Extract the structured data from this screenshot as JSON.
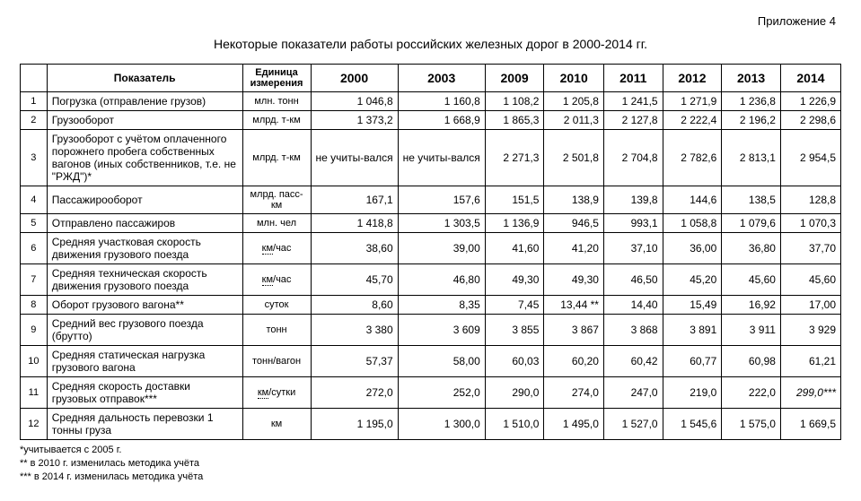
{
  "appendix": "Приложение 4",
  "title": "Некоторые показатели работы российских железных дорог в 2000-2014 гг.",
  "headers": {
    "indicator": "Показатель",
    "unit": "Единица измерения",
    "years": [
      "2000",
      "2003",
      "2009",
      "2010",
      "2011",
      "2012",
      "2013",
      "2014"
    ]
  },
  "rows": [
    {
      "n": "1",
      "indicator": "Погрузка (отправление грузов)",
      "unit": "млн. тонн",
      "vals": [
        "1 046,8",
        "1 160,8",
        "1 108,2",
        "1 205,8",
        "1 241,5",
        "1 271,9",
        "1 236,8",
        "1 226,9"
      ]
    },
    {
      "n": "2",
      "indicator": "Грузооборот",
      "unit": "млрд. т-км",
      "vals": [
        "1 373,2",
        "1 668,9",
        "1 865,3",
        "2 011,3",
        "2 127,8",
        "2 222,4",
        "2 196,2",
        "2 298,6"
      ]
    },
    {
      "n": "3",
      "indicator": "Грузооборот с учётом оплаченного порожнего пробега собственных вагонов (иных собственников, т.е. не \"РЖД\")*",
      "unit": "млрд. т-км",
      "vals": [
        "не учиты-вался",
        "не учиты-вался",
        "2 271,3",
        "2 501,8",
        "2 704,8",
        "2 782,6",
        "2 813,1",
        "2 954,5"
      ],
      "center": [
        0,
        1
      ]
    },
    {
      "n": "4",
      "indicator": "Пассажирооборот",
      "unit": "млрд. пасс-км",
      "vals": [
        "167,1",
        "157,6",
        "151,5",
        "138,9",
        "139,8",
        "144,6",
        "138,5",
        "128,8"
      ]
    },
    {
      "n": "5",
      "indicator": "Отправлено пассажиров",
      "unit": "млн. чел",
      "vals": [
        "1 418,8",
        "1 303,5",
        "1 136,9",
        "946,5",
        "993,1",
        "1 058,8",
        "1 079,6",
        "1 070,3"
      ]
    },
    {
      "n": "6",
      "indicator": "Средняя участковая скорость движения грузового поезда",
      "unit_html": "<span class=\"dotted\">км</span>/час",
      "vals": [
        "38,60",
        "39,00",
        "41,60",
        "41,20",
        "37,10",
        "36,00",
        "36,80",
        "37,70"
      ]
    },
    {
      "n": "7",
      "indicator": "Средняя техническая скорость движения грузового поезда",
      "unit_html": "<span class=\"dotted\">км</span>/час",
      "vals": [
        "45,70",
        "46,80",
        "49,30",
        "49,30",
        "46,50",
        "45,20",
        "45,60",
        "45,60"
      ]
    },
    {
      "n": "8",
      "indicator": "Оборот грузового вагона**",
      "unit": "суток",
      "vals": [
        "8,60",
        "8,35",
        "7,45",
        "13,44 **",
        "14,40",
        "15,49",
        "16,92",
        "17,00"
      ]
    },
    {
      "n": "9",
      "indicator": "Средний вес грузового поезда (брутто)",
      "unit": "тонн",
      "vals": [
        "3 380",
        "3 609",
        "3 855",
        "3 867",
        "3 868",
        "3 891",
        "3 911",
        "3 929"
      ]
    },
    {
      "n": "10",
      "indicator": "Средняя статическая нагрузка грузового вагона",
      "unit": "тонн/вагон",
      "vals": [
        "57,37",
        "58,00",
        "60,03",
        "60,20",
        "60,42",
        "60,77",
        "60,98",
        "61,21"
      ]
    },
    {
      "n": "11",
      "indicator": "Средняя скорость доставки грузовых отправок***",
      "unit_html": "<span class=\"dotted\">км</span>/сутки",
      "vals": [
        "272,0",
        "252,0",
        "290,0",
        "274,0",
        "247,0",
        "219,0",
        "222,0",
        "299,0***"
      ],
      "italic": [
        7
      ]
    },
    {
      "n": "12",
      "indicator": "Средняя дальность перевозки 1 тонны груза",
      "unit": "км",
      "vals": [
        "1 195,0",
        "1 300,0",
        "1 510,0",
        "1 495,0",
        "1 527,0",
        "1 545,6",
        "1 575,0",
        "1 669,5"
      ]
    }
  ],
  "notes": [
    "*учитывается с 2005 г.",
    "** в 2010 г. изменилась методика учёта",
    "*** в  2014 г. изменилась методика учёта"
  ]
}
